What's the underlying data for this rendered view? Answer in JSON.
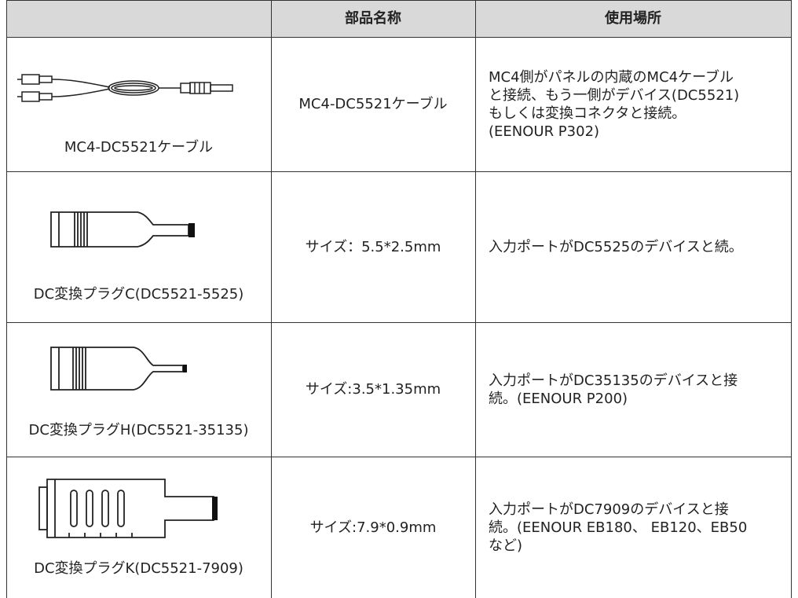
{
  "table": {
    "header": [
      "部品名称",
      "使用場所"
    ],
    "rows": [
      {
        "image_caption": "MC4-DC5521ケーブル",
        "name": "MC4-DC5521ケーブル",
        "usage": [
          "MC4側がパネルの内蔵のMC4ケーブル",
          "と接続、もう一側がデバイス(DC5521)",
          "もしくは変換コネクタと接続。",
          "(EENOUR P302)"
        ]
      },
      {
        "image_caption": "DC変換プラグC(DC5521-5525)",
        "name": "サイズ：5.5*2.5mm",
        "usage": [
          "入力ポートがDC5525のデバイスと続。"
        ]
      },
      {
        "image_caption": "DC変換プラグH(DC5521-35135)",
        "name": "サイズ:3.5*1.35mm",
        "usage": [
          "入力ポートがDC35135のデバイスと接",
          "続。(EENOUR P200)"
        ]
      },
      {
        "image_caption": "DC変換プラグK(DC5521-7909)",
        "name": "サイズ:7.9*0.9mm",
        "usage": [
          "入力ポートがDC7909のデバイスと接",
          "続。(EENOUR EB180、 EB120、EB50",
          "など)"
        ]
      }
    ]
  }
}
